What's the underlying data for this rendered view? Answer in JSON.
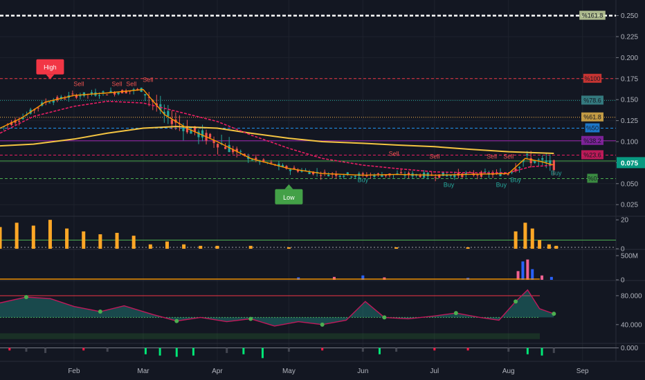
{
  "colors": {
    "background": "#131722",
    "grid": "#1e222d",
    "axis_text": "#b2b5be",
    "up": "#26a69a",
    "down": "#ef5350",
    "price_label": "#089981",
    "ema_fast": "#ff9800",
    "ema_slow": "#e91e63",
    "ma_long": "#f5c542",
    "volume": "#ffa726",
    "volume_blue": "#2962ff",
    "volume_pink": "#f06292",
    "rsi_up": "#26a69a",
    "rsi_down": "#b71c1c",
    "hist_up": "#00e676",
    "hist_down": "#ff1744",
    "hist_neutral": "#434651"
  },
  "chart_data": {
    "type": "candlestick",
    "x_axis": {
      "type": "date",
      "range": [
        "2020-01-01",
        "2020-09-15"
      ],
      "tick_labels": [
        {
          "date": "2020-02-01",
          "label": "Feb"
        },
        {
          "date": "2020-03-01",
          "label": "Mar"
        },
        {
          "date": "2020-04-01",
          "label": "Apr"
        },
        {
          "date": "2020-05-01",
          "label": "May"
        },
        {
          "date": "2020-06-01",
          "label": "Jun"
        },
        {
          "date": "2020-07-01",
          "label": "Jul"
        },
        {
          "date": "2020-08-01",
          "label": "Aug"
        },
        {
          "date": "2020-09-01",
          "label": "Sep"
        }
      ]
    },
    "price_pane": {
      "y_range": [
        0.012,
        0.262
      ],
      "tick_labels": [
        "0.025",
        "0.050",
        "0.075",
        "0.100",
        "0.125",
        "0.150",
        "0.175",
        "0.200",
        "0.225",
        "0.250"
      ],
      "current_price": {
        "value": 0.075,
        "label": "0.075"
      },
      "fib_levels": [
        {
          "label": "%161.8",
          "value": 0.25,
          "color": "#ffffff",
          "bg": "#c8d6a0",
          "style": "dashed-bold"
        },
        {
          "label": "%100",
          "value": 0.175,
          "color": "#f23645",
          "bg": "#e53935",
          "style": "dashed"
        },
        {
          "label": "%78.6",
          "value": 0.149,
          "color": "#26a69a",
          "bg": "#3b8b8e",
          "style": "dotted"
        },
        {
          "label": "%61.8",
          "value": 0.129,
          "color": "#ffb74d",
          "bg": "#e0b24a",
          "style": "dotted"
        },
        {
          "label": "%50",
          "value": 0.116,
          "color": "#2196f3",
          "bg": "#1e88e5",
          "style": "dashed"
        },
        {
          "label": "%38.2",
          "value": 0.101,
          "color": "#9c27b0",
          "bg": "#8e24aa",
          "style": "solid"
        },
        {
          "label": "%23.6",
          "value": 0.084,
          "color": "#e91e63",
          "bg": "#d81b60",
          "style": "dashed"
        },
        {
          "label": "%0",
          "value": 0.056,
          "color": "#4caf50",
          "bg": "#43a047",
          "style": "dashed"
        }
      ],
      "extra_lines": [
        {
          "value": 0.077,
          "color": "#4caf50",
          "style": "solid"
        }
      ],
      "ema_fast": [
        [
          "2020-01-01",
          0.116
        ],
        [
          "2020-01-10",
          0.128
        ],
        [
          "2020-01-20",
          0.147
        ],
        [
          "2020-02-01",
          0.155
        ],
        [
          "2020-02-15",
          0.158
        ],
        [
          "2020-03-01",
          0.162
        ],
        [
          "2020-03-10",
          0.132
        ],
        [
          "2020-03-20",
          0.115
        ],
        [
          "2020-04-01",
          0.1
        ],
        [
          "2020-04-15",
          0.08
        ],
        [
          "2020-05-01",
          0.068
        ],
        [
          "2020-05-15",
          0.062
        ],
        [
          "2020-06-01",
          0.06
        ],
        [
          "2020-06-15",
          0.061
        ],
        [
          "2020-07-01",
          0.06
        ],
        [
          "2020-07-15",
          0.061
        ],
        [
          "2020-08-01",
          0.062
        ],
        [
          "2020-08-08",
          0.08
        ],
        [
          "2020-08-15",
          0.076
        ],
        [
          "2020-08-20",
          0.072
        ]
      ],
      "ema_slow": [
        [
          "2020-01-01",
          0.11
        ],
        [
          "2020-01-15",
          0.13
        ],
        [
          "2020-02-01",
          0.142
        ],
        [
          "2020-02-15",
          0.148
        ],
        [
          "2020-03-01",
          0.146
        ],
        [
          "2020-03-15",
          0.136
        ],
        [
          "2020-04-01",
          0.124
        ],
        [
          "2020-04-15",
          0.108
        ],
        [
          "2020-05-01",
          0.092
        ],
        [
          "2020-05-15",
          0.08
        ],
        [
          "2020-06-01",
          0.072
        ],
        [
          "2020-06-15",
          0.068
        ],
        [
          "2020-07-01",
          0.064
        ],
        [
          "2020-07-15",
          0.063
        ],
        [
          "2020-08-01",
          0.063
        ],
        [
          "2020-08-10",
          0.07
        ],
        [
          "2020-08-20",
          0.072
        ]
      ],
      "ma_long": [
        [
          "2020-01-01",
          0.095
        ],
        [
          "2020-01-15",
          0.097
        ],
        [
          "2020-02-01",
          0.103
        ],
        [
          "2020-02-15",
          0.11
        ],
        [
          "2020-03-01",
          0.116
        ],
        [
          "2020-03-15",
          0.118
        ],
        [
          "2020-04-01",
          0.116
        ],
        [
          "2020-04-15",
          0.11
        ],
        [
          "2020-05-01",
          0.104
        ],
        [
          "2020-05-15",
          0.1
        ],
        [
          "2020-06-01",
          0.098
        ],
        [
          "2020-06-15",
          0.096
        ],
        [
          "2020-07-01",
          0.094
        ],
        [
          "2020-07-15",
          0.091
        ],
        [
          "2020-08-01",
          0.088
        ],
        [
          "2020-08-20",
          0.086
        ]
      ],
      "signals": [
        {
          "date": "2020-01-22",
          "value": 0.18,
          "label": "High",
          "type": "box-high"
        },
        {
          "date": "2020-05-01",
          "value": 0.05,
          "label": "Low",
          "type": "box-low"
        },
        {
          "date": "2020-02-03",
          "value": 0.166,
          "label": "Sell",
          "type": "sell"
        },
        {
          "date": "2020-02-19",
          "value": 0.166,
          "label": "Sell",
          "type": "sell"
        },
        {
          "date": "2020-02-25",
          "value": 0.166,
          "label": "Sell",
          "type": "sell"
        },
        {
          "date": "2020-03-03",
          "value": 0.171,
          "label": "Sell",
          "type": "sell"
        },
        {
          "date": "2020-06-14",
          "value": 0.083,
          "label": "Sell",
          "type": "sell"
        },
        {
          "date": "2020-07-01",
          "value": 0.08,
          "label": "Sell",
          "type": "sell"
        },
        {
          "date": "2020-07-25",
          "value": 0.08,
          "label": "Sell",
          "type": "sell"
        },
        {
          "date": "2020-08-01",
          "value": 0.08,
          "label": "Sell",
          "type": "sell"
        },
        {
          "date": "2020-06-01",
          "value": 0.052,
          "label": "Buy",
          "type": "buy"
        },
        {
          "date": "2020-07-07",
          "value": 0.046,
          "label": "Buy",
          "type": "buy"
        },
        {
          "date": "2020-07-29",
          "value": 0.046,
          "label": "Buy",
          "type": "buy"
        },
        {
          "date": "2020-08-04",
          "value": 0.052,
          "label": "Buy",
          "type": "buy"
        },
        {
          "date": "2020-08-21",
          "value": 0.06,
          "label": "Buy",
          "type": "buy"
        }
      ]
    },
    "volume_pane_1": {
      "y_range": [
        0,
        22
      ],
      "tick_labels": [
        "0",
        "20"
      ],
      "threshold": 6,
      "bars": [
        [
          "2020-01-01",
          15
        ],
        [
          "2020-01-08",
          18
        ],
        [
          "2020-01-15",
          16
        ],
        [
          "2020-01-22",
          20
        ],
        [
          "2020-01-29",
          14
        ],
        [
          "2020-02-05",
          12
        ],
        [
          "2020-02-12",
          10
        ],
        [
          "2020-02-19",
          11
        ],
        [
          "2020-02-26",
          9
        ],
        [
          "2020-03-04",
          3
        ],
        [
          "2020-03-11",
          5
        ],
        [
          "2020-03-18",
          3
        ],
        [
          "2020-03-25",
          2
        ],
        [
          "2020-04-01",
          2
        ],
        [
          "2020-04-15",
          2
        ],
        [
          "2020-05-01",
          1
        ],
        [
          "2020-06-15",
          1
        ],
        [
          "2020-07-15",
          1
        ],
        [
          "2020-08-04",
          12
        ],
        [
          "2020-08-08",
          18
        ],
        [
          "2020-08-11",
          14
        ],
        [
          "2020-08-14",
          6
        ],
        [
          "2020-08-18",
          3
        ],
        [
          "2020-08-21",
          2
        ]
      ]
    },
    "volume_pane_2": {
      "y_range": [
        0,
        600
      ],
      "tick_labels": [
        "0",
        "500M"
      ],
      "bars": [
        [
          "2020-05-05",
          50
        ],
        [
          "2020-05-20",
          60
        ],
        [
          "2020-06-01",
          90
        ],
        [
          "2020-06-10",
          50
        ],
        [
          "2020-07-15",
          40
        ],
        [
          "2020-08-05",
          180
        ],
        [
          "2020-08-07",
          380
        ],
        [
          "2020-08-09",
          420
        ],
        [
          "2020-08-11",
          220
        ],
        [
          "2020-08-15",
          90
        ],
        [
          "2020-08-19",
          60
        ]
      ]
    },
    "oscillator_pane": {
      "y_range": [
        15,
        100
      ],
      "tick_labels": [
        "40.000",
        "80.000"
      ],
      "upper_band": 80,
      "lower_band": 20,
      "line": [
        [
          "2020-01-01",
          70
        ],
        [
          "2020-01-12",
          78
        ],
        [
          "2020-01-22",
          76
        ],
        [
          "2020-02-01",
          65
        ],
        [
          "2020-02-12",
          58
        ],
        [
          "2020-02-22",
          66
        ],
        [
          "2020-03-05",
          54
        ],
        [
          "2020-03-15",
          45
        ],
        [
          "2020-03-25",
          50
        ],
        [
          "2020-04-05",
          44
        ],
        [
          "2020-04-15",
          48
        ],
        [
          "2020-04-25",
          38
        ],
        [
          "2020-05-05",
          44
        ],
        [
          "2020-05-15",
          40
        ],
        [
          "2020-05-25",
          46
        ],
        [
          "2020-06-02",
          72
        ],
        [
          "2020-06-10",
          50
        ],
        [
          "2020-06-20",
          48
        ],
        [
          "2020-07-01",
          52
        ],
        [
          "2020-07-10",
          56
        ],
        [
          "2020-07-20",
          50
        ],
        [
          "2020-07-28",
          46
        ],
        [
          "2020-08-04",
          72
        ],
        [
          "2020-08-09",
          88
        ],
        [
          "2020-08-14",
          62
        ],
        [
          "2020-08-20",
          55
        ]
      ]
    },
    "histogram_pane": {
      "y_range": [
        -10,
        3
      ],
      "tick_labels": [
        "0.000"
      ],
      "bars": [
        [
          "2020-01-05",
          -2
        ],
        [
          "2020-01-12",
          -3
        ],
        [
          "2020-01-20",
          -4
        ],
        [
          "2020-02-05",
          -2
        ],
        [
          "2020-02-15",
          -3
        ],
        [
          "2020-03-02",
          -5
        ],
        [
          "2020-03-08",
          -6
        ],
        [
          "2020-03-15",
          -7
        ],
        [
          "2020-03-22",
          -6
        ],
        [
          "2020-04-05",
          -4
        ],
        [
          "2020-04-12",
          -5
        ],
        [
          "2020-04-20",
          -8
        ],
        [
          "2020-05-01",
          -3
        ],
        [
          "2020-05-15",
          -2
        ],
        [
          "2020-06-01",
          -3
        ],
        [
          "2020-06-08",
          -5
        ],
        [
          "2020-06-15",
          -3
        ],
        [
          "2020-07-01",
          -2
        ],
        [
          "2020-07-15",
          -2
        ],
        [
          "2020-08-01",
          -3
        ],
        [
          "2020-08-09",
          -5
        ],
        [
          "2020-08-15",
          -6
        ],
        [
          "2020-08-20",
          -4
        ]
      ]
    }
  }
}
